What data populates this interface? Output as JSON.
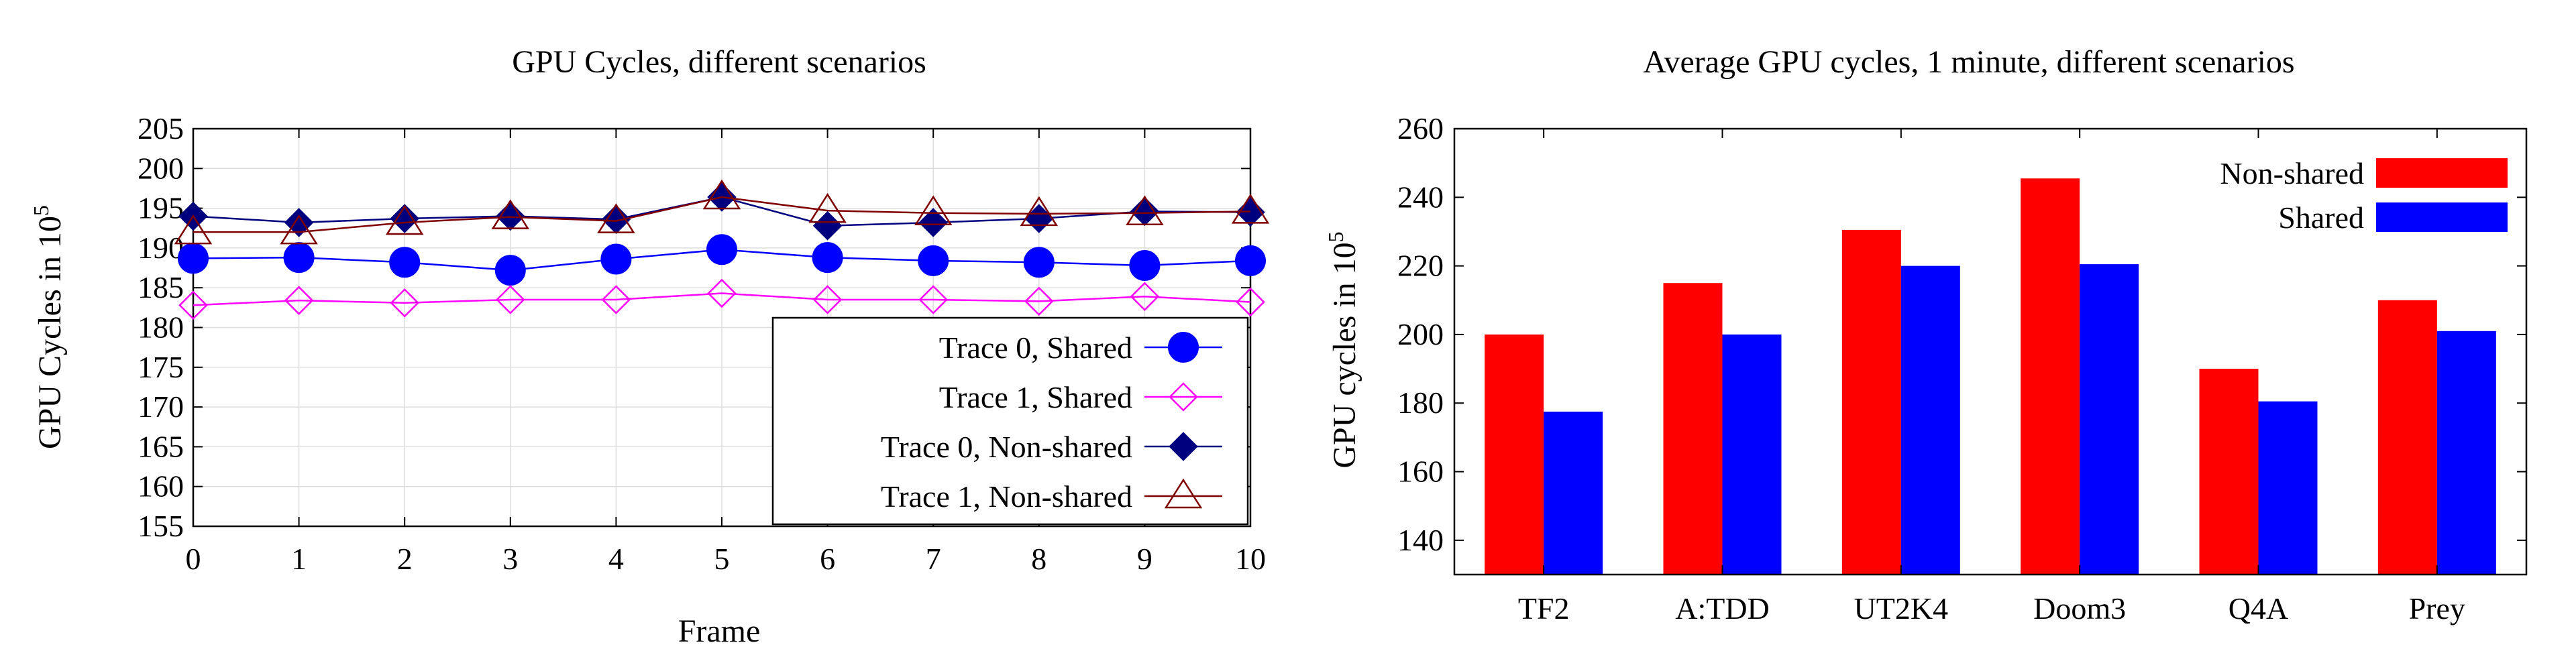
{
  "colors": {
    "trace0_shared": "#0000ff",
    "trace1_shared": "#ff00ff",
    "trace0_nonshared": "#00007f",
    "trace1_nonshared": "#7f0000",
    "bar_nonshared": "#ff0000",
    "bar_shared": "#0000ff",
    "grid": "#dddddd"
  },
  "chart_data": [
    {
      "type": "line",
      "title": "GPU Cycles, different scenarios",
      "xlabel": "Frame",
      "ylabel_prefix": "GPU Cycles in 10",
      "ylabel_exp": "5",
      "xlim": [
        0,
        10
      ],
      "ylim": [
        155,
        205
      ],
      "x_ticks": [
        0,
        1,
        2,
        3,
        4,
        5,
        6,
        7,
        8,
        9,
        10
      ],
      "y_ticks": [
        155,
        160,
        165,
        170,
        175,
        180,
        185,
        190,
        195,
        200,
        205
      ],
      "grid": true,
      "legend_position": "bottom-right",
      "x": [
        0,
        1,
        2,
        3,
        4,
        5,
        6,
        7,
        8,
        9,
        10
      ],
      "series": [
        {
          "name": "Trace 0, Shared",
          "marker": "circle",
          "values": [
            188.7,
            188.8,
            188.2,
            187.2,
            188.6,
            189.8,
            188.8,
            188.4,
            188.2,
            187.8,
            188.4
          ]
        },
        {
          "name": "Trace 1, Shared",
          "marker": "diamond-open",
          "values": [
            182.8,
            183.4,
            183.1,
            183.5,
            183.5,
            184.3,
            183.5,
            183.5,
            183.3,
            183.9,
            183.2
          ]
        },
        {
          "name": "Trace 0, Non-shared",
          "marker": "diamond",
          "values": [
            194.0,
            193.2,
            193.7,
            194.0,
            193.6,
            196.4,
            192.8,
            193.2,
            193.7,
            194.6,
            194.5
          ]
        },
        {
          "name": "Trace 1, Non-shared",
          "marker": "triangle-open",
          "values": [
            192.0,
            192.0,
            193.2,
            193.9,
            193.4,
            196.4,
            194.7,
            194.4,
            194.3,
            194.4,
            194.6
          ]
        }
      ]
    },
    {
      "type": "bar",
      "title": "Average GPU cycles, 1 minute, different scenarios",
      "xlabel": "",
      "ylabel_prefix": "GPU cycles in 10",
      "ylabel_exp": "5",
      "ylim": [
        130,
        260
      ],
      "y_ticks": [
        140,
        160,
        180,
        200,
        220,
        240,
        260
      ],
      "grid": false,
      "legend_position": "top-right",
      "categories": [
        "TF2",
        "A:TDD",
        "UT2K4",
        "Doom3",
        "Q4A",
        "Prey"
      ],
      "series": [
        {
          "name": "Non-shared",
          "values": [
            200,
            215,
            230.5,
            245.5,
            190,
            210
          ]
        },
        {
          "name": "Shared",
          "values": [
            177.5,
            200,
            220,
            220.5,
            180.5,
            201
          ]
        }
      ]
    }
  ]
}
